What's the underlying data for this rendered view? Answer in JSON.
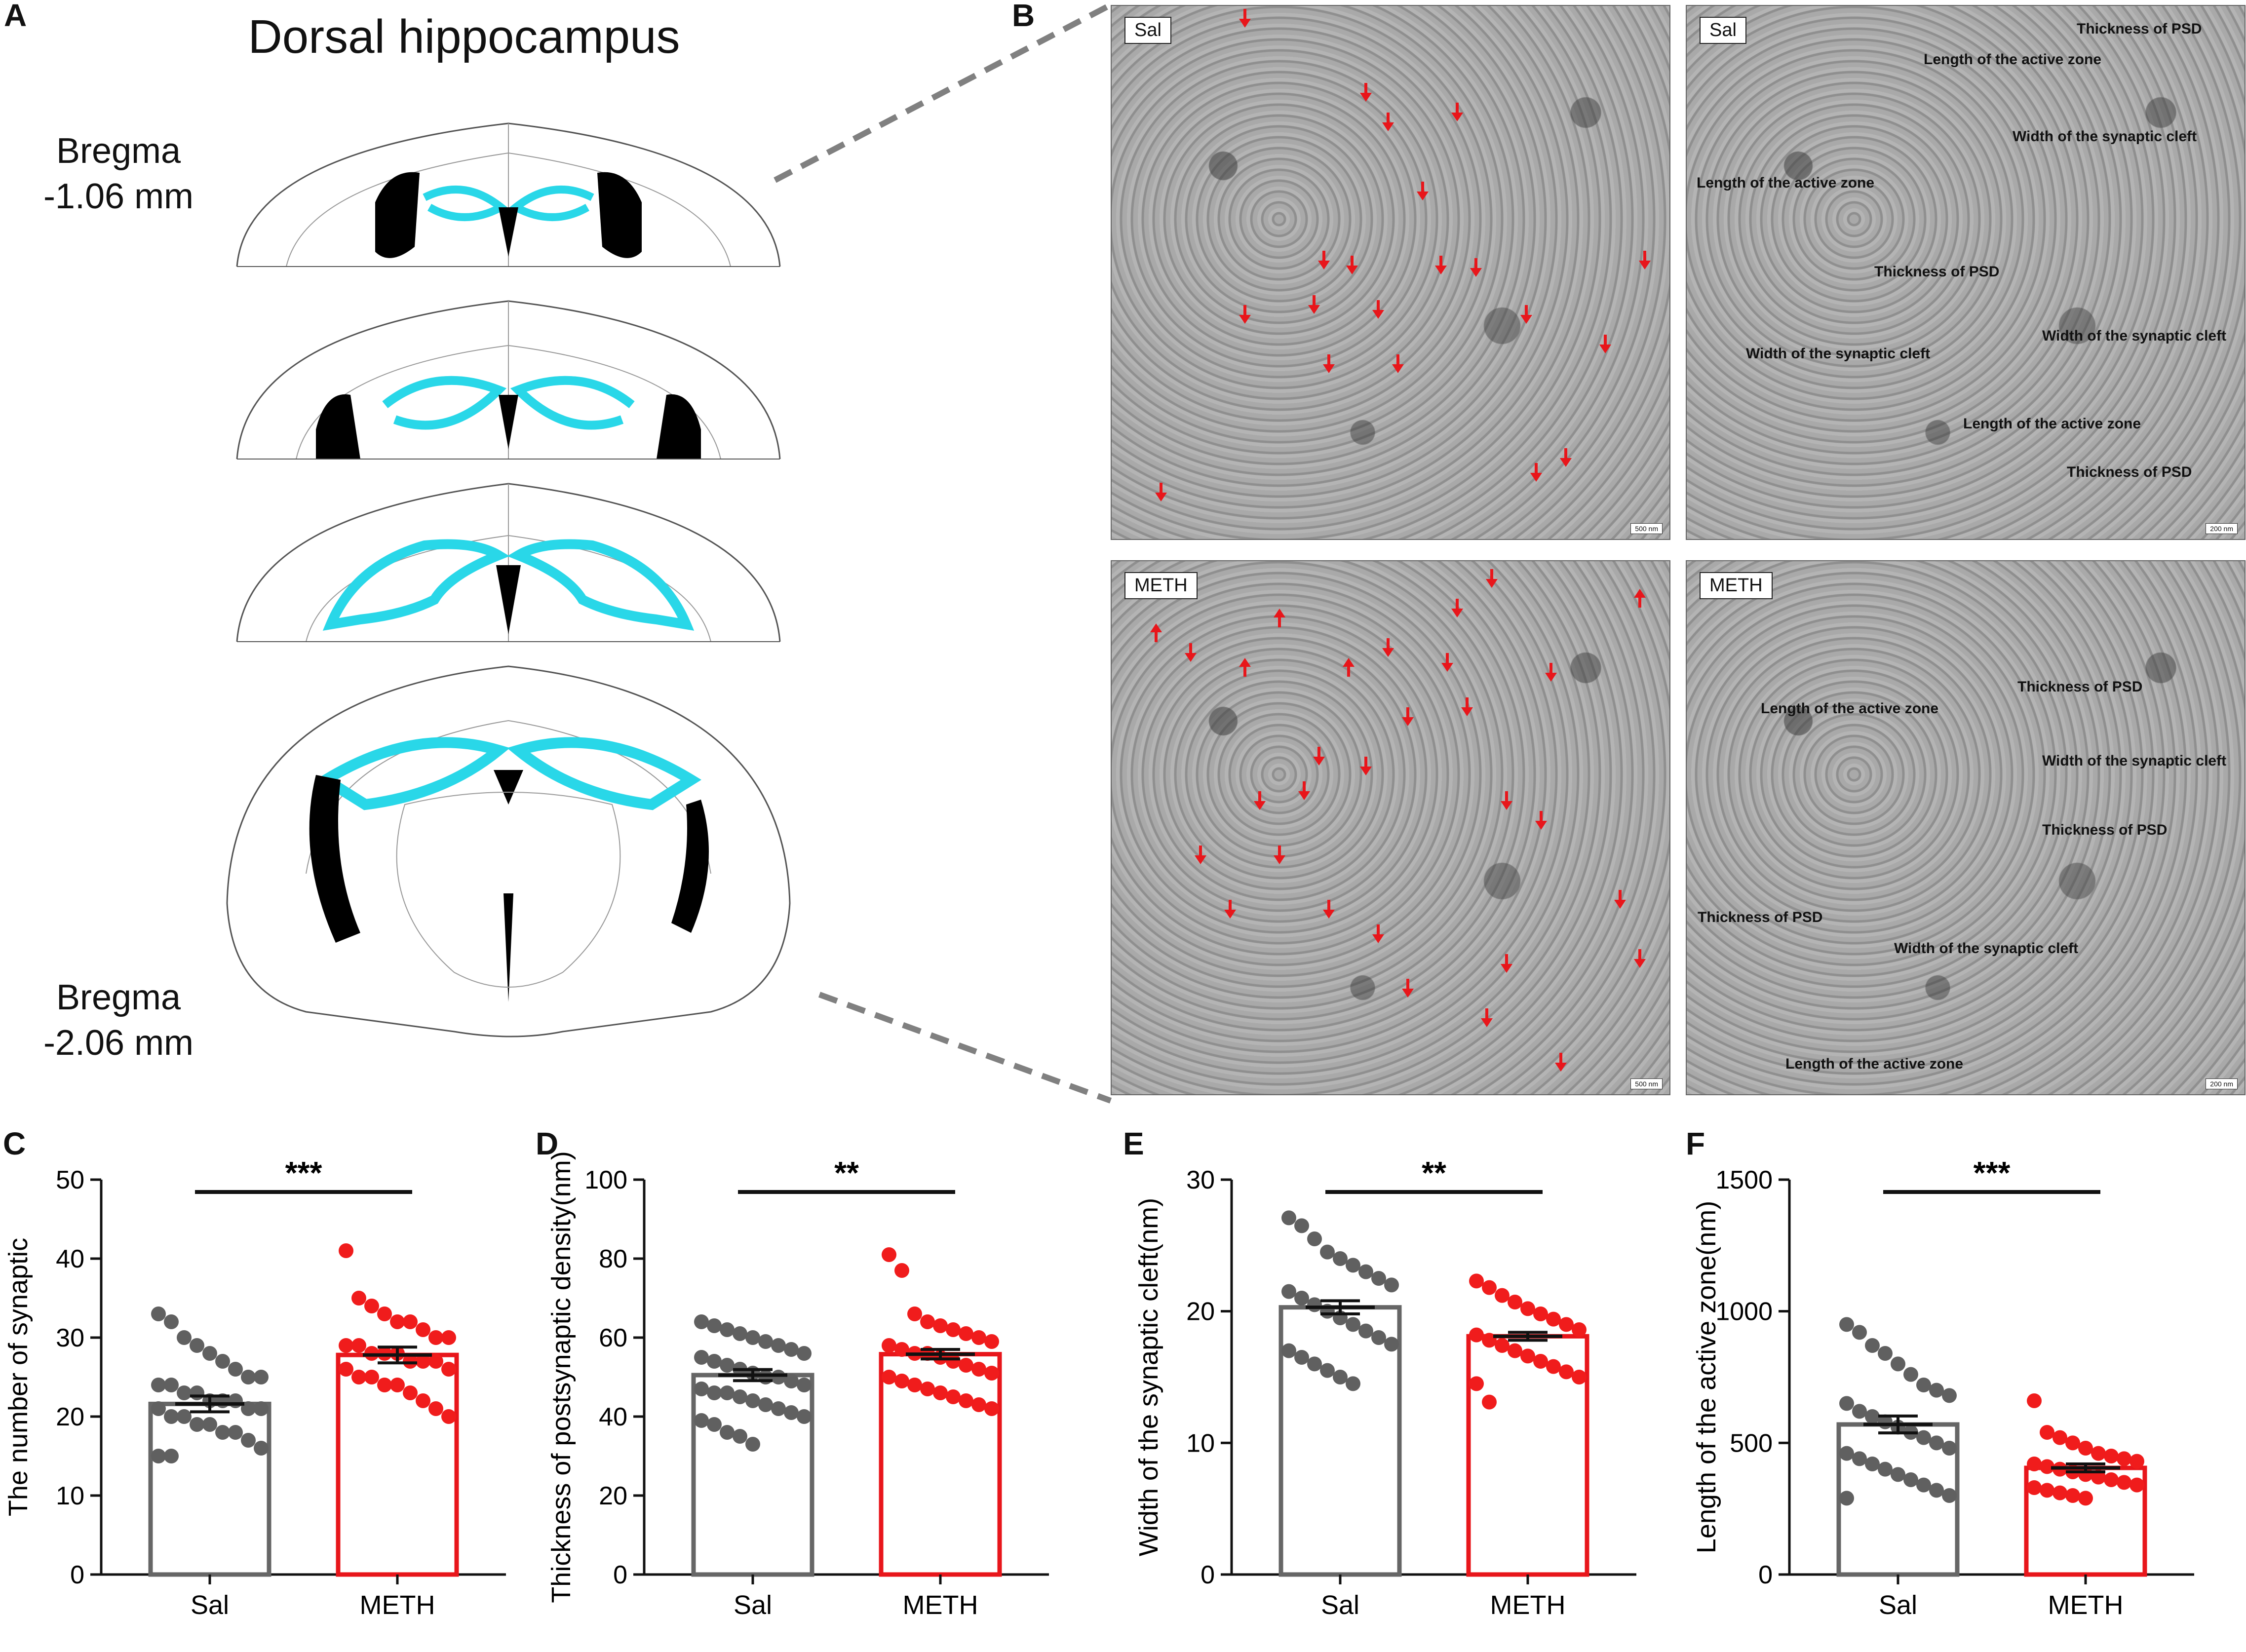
{
  "panel_a": {
    "letter": "A",
    "title": "Dorsal hippocampus",
    "bregma_top": [
      "Bregma",
      "-1.06 mm"
    ],
    "bregma_bottom": [
      "Bregma",
      "-2.06 mm"
    ],
    "highlight_color": "#29d7e8"
  },
  "panel_b": {
    "letter": "B",
    "tiles": [
      {
        "label": "Sal",
        "scale": "500 nm"
      },
      {
        "label": "Sal",
        "scale": "200 nm"
      },
      {
        "label": "METH",
        "scale": "500 nm"
      },
      {
        "label": "METH",
        "scale": "200 nm"
      }
    ],
    "annotations_sal": [
      "Thickness of PSD",
      "Length of the active zone",
      "Width of the synaptic cleft",
      "Length of the active zone",
      "Thickness of PSD",
      "Width of the synaptic cleft",
      "Width of the synaptic cleft",
      "Length of the active zone",
      "Thickness of PSD"
    ],
    "annotations_meth": [
      "Thickness of PSD",
      "Length of the active zone",
      "Width of the synaptic cleft",
      "Thickness of PSD",
      "Thickness of PSD",
      "Width of the synaptic cleft",
      "Length of the active zone"
    ],
    "arrow_color": "#e8161b"
  },
  "colors": {
    "sal": "#666666",
    "meth": "#e8161b",
    "sal_dot": "#606060",
    "meth_dot": "#f01c1c"
  },
  "chart_data": [
    {
      "letter": "C",
      "type": "bar",
      "categories": [
        "Sal",
        "METH"
      ],
      "ylabel": "The number of synaptic",
      "ylim": [
        0,
        50
      ],
      "yticks": [
        0,
        10,
        20,
        30,
        40,
        50
      ],
      "values": [
        21.6,
        27.8
      ],
      "sem": [
        1.0,
        1.0
      ],
      "significance": "***",
      "points": [
        [
          33,
          32,
          30,
          29,
          28,
          27,
          26,
          25,
          25,
          24,
          24,
          23,
          23,
          22,
          22,
          22,
          21,
          21,
          21,
          20,
          20,
          19,
          19,
          18,
          18,
          17,
          16,
          15,
          15
        ],
        [
          41,
          35,
          34,
          33,
          32,
          32,
          31,
          30,
          30,
          29,
          29,
          28,
          28,
          28,
          27,
          27,
          27,
          26,
          26,
          25,
          25,
          24,
          24,
          23,
          22,
          21,
          20
        ]
      ]
    },
    {
      "letter": "D",
      "type": "bar",
      "categories": [
        "Sal",
        "METH"
      ],
      "ylabel": "Thickness of postsynaptic density(nm)",
      "ylim": [
        0,
        100
      ],
      "yticks": [
        0,
        20,
        40,
        60,
        80,
        100
      ],
      "values": [
        50.5,
        55.8
      ],
      "sem": [
        1.4,
        1.2
      ],
      "significance": "**",
      "points": [
        [
          64,
          63,
          62,
          61,
          60,
          59,
          58,
          57,
          56,
          55,
          54,
          53,
          52,
          51,
          50,
          50,
          49,
          48,
          47,
          46,
          46,
          45,
          44,
          43,
          42,
          41,
          40,
          39,
          38,
          36,
          35,
          33
        ],
        [
          81,
          77,
          66,
          64,
          63,
          62,
          61,
          60,
          59,
          58,
          57,
          56,
          56,
          55,
          54,
          53,
          52,
          51,
          50,
          49,
          48,
          47,
          46,
          45,
          44,
          43,
          42
        ]
      ]
    },
    {
      "letter": "E",
      "type": "bar",
      "categories": [
        "Sal",
        "METH"
      ],
      "ylabel": "Width of the synaptic cleft(nm)",
      "ylim": [
        0,
        30
      ],
      "yticks": [
        0,
        10,
        20,
        30
      ],
      "values": [
        20.3,
        18.1
      ],
      "sem": [
        0.5,
        0.3
      ],
      "significance": "**",
      "points": [
        [
          27.1,
          26.5,
          25.5,
          24.5,
          24,
          23.5,
          23,
          22.5,
          22,
          21.5,
          21,
          20.5,
          20,
          19.5,
          19,
          18.5,
          18,
          17.5,
          17,
          16.5,
          16,
          15.5,
          15,
          14.5
        ],
        [
          22.3,
          21.8,
          21.2,
          20.7,
          20.2,
          19.8,
          19.4,
          19,
          18.6,
          18.2,
          17.8,
          17.4,
          17,
          16.6,
          16.2,
          15.8,
          15.4,
          15,
          14.5,
          13.1
        ]
      ]
    },
    {
      "letter": "F",
      "type": "bar",
      "categories": [
        "Sal",
        "METH"
      ],
      "ylabel": "Length of the active zone(nm)",
      "ylim": [
        0,
        1500
      ],
      "yticks": [
        0,
        500,
        1000,
        1500
      ],
      "values": [
        570,
        405
      ],
      "sem": [
        32,
        15
      ],
      "significance": "***",
      "points": [
        [
          950,
          920,
          870,
          840,
          800,
          760,
          720,
          700,
          680,
          650,
          620,
          600,
          580,
          560,
          540,
          520,
          500,
          480,
          460,
          440,
          420,
          400,
          380,
          360,
          340,
          320,
          300,
          290
        ],
        [
          660,
          540,
          520,
          500,
          480,
          460,
          450,
          440,
          430,
          420,
          410,
          400,
          390,
          380,
          370,
          360,
          350,
          340,
          330,
          320,
          310,
          300,
          290
        ]
      ]
    }
  ]
}
